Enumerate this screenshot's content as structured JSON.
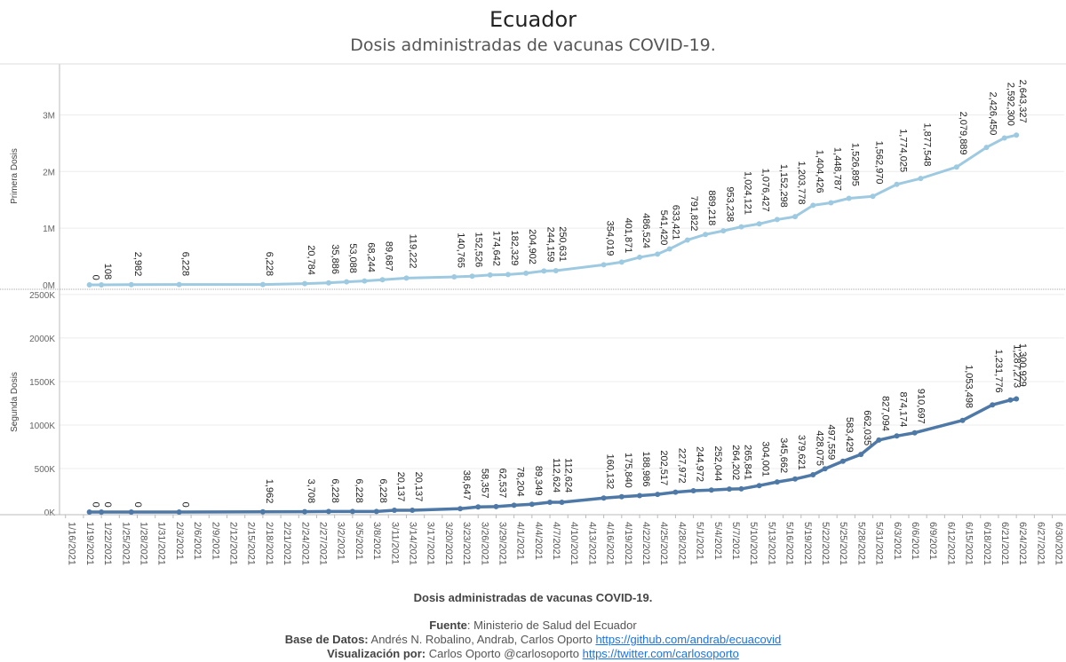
{
  "header": {
    "title": "Ecuador",
    "subtitle": "Dosis administradas de vacunas COVID-19."
  },
  "chart_data": {
    "type": "line",
    "colors": {
      "primera": "#9ecae1",
      "segunda": "#4e79a7"
    },
    "x": [
      "1/19/2021",
      "1/21/2021",
      "1/26/2021",
      "2/4/2021",
      "2/18/2021",
      "2/25/2021",
      "3/1/2021",
      "3/4/2021",
      "3/8/2021",
      "3/11/2021",
      "3/13/2021",
      "3/21/2021",
      "3/24/2021",
      "3/27/2021",
      "3/30/2021",
      "4/2/2021",
      "4/5/2021",
      "4/7/2021",
      "4/15/2021",
      "4/18/2021",
      "4/20/2021",
      "4/22/2021",
      "4/24/2021",
      "4/26/2021",
      "4/29/2021",
      "5/2/2021",
      "5/5/2021",
      "5/7/2021",
      "5/10/2021",
      "5/13/2021",
      "5/16/2021",
      "5/18/2021",
      "5/20/2021",
      "5/22/2021",
      "5/25/2021",
      "5/27/2021",
      "5/31/2021",
      "6/3/2021",
      "6/6/2021",
      "6/13/2021",
      "6/16/2021",
      "6/20/2021",
      "6/22/2021",
      "6/24/2021",
      "6/25/2021"
    ],
    "series": [
      {
        "key": "primera",
        "values": [
          0,
          108,
          2982,
          6228,
          6228,
          20784,
          35886,
          53088,
          68244,
          89687,
          119222,
          140765,
          152526,
          174642,
          182329,
          204902,
          244159,
          250631,
          354019,
          401871,
          486524,
          541420,
          633421,
          791822,
          889218,
          953238,
          1024121,
          1076427,
          1152298,
          1203778,
          1404426,
          1448787,
          1526895,
          1562970,
          1774025,
          1877548,
          2079889,
          2426450,
          2592300,
          2643327
        ],
        "x": [
          "1/20/2021",
          "1/22/2021",
          "1/27/2021",
          "2/4/2021",
          "2/18/2021",
          "2/25/2021",
          "3/1/2021",
          "3/4/2021",
          "3/7/2021",
          "3/10/2021",
          "3/14/2021",
          "3/22/2021",
          "3/25/2021",
          "3/28/2021",
          "3/31/2021",
          "4/3/2021",
          "4/6/2021",
          "4/8/2021",
          "4/16/2021",
          "4/19/2021",
          "4/22/2021",
          "4/25/2021",
          "4/27/2021",
          "4/30/2021",
          "5/3/2021",
          "5/6/2021",
          "5/9/2021",
          "5/12/2021",
          "5/15/2021",
          "5/18/2021",
          "5/21/2021",
          "5/24/2021",
          "5/27/2021",
          "5/31/2021",
          "6/4/2021",
          "6/8/2021",
          "6/14/2021",
          "6/19/2021",
          "6/22/2021",
          "6/24/2021"
        ],
        "labels": [
          "0",
          "108",
          "2,982",
          "6,228",
          "6,228",
          "20,784",
          "35,886",
          "53,088",
          "68,244",
          "89,687",
          "119,222",
          "140,765",
          "152,526",
          "174,642",
          "182,329",
          "204,902",
          "244,159",
          "250,631",
          "354,019",
          "401,871",
          "486,524",
          "541,420",
          "633,421",
          "791,822",
          "889,218",
          "953,238",
          "1,024,121",
          "1,076,427",
          "1,152,298",
          "1,203,778",
          "1,404,426",
          "1,448,787",
          "1,526,895",
          "1,562,970",
          "1,774,025",
          "1,877,548",
          "2,079,889",
          "2,426,450",
          "2,592,300",
          "2,643,327"
        ]
      },
      {
        "key": "segunda",
        "values": [
          0,
          0,
          0,
          0,
          1962,
          3708,
          6228,
          6228,
          6228,
          20137,
          20137,
          38647,
          58357,
          62537,
          78204,
          89349,
          112624,
          112624,
          160132,
          175840,
          188986,
          202517,
          227972,
          244972,
          252044,
          264202,
          265841,
          304001,
          345662,
          379621,
          428075,
          497559,
          583429,
          662035,
          827094,
          874174,
          910697,
          1053498,
          1231776,
          1287273,
          1300929
        ],
        "x": [
          "1/20/2021",
          "1/22/2021",
          "1/27/2021",
          "2/4/2021",
          "2/18/2021",
          "2/25/2021",
          "3/1/2021",
          "3/5/2021",
          "3/9/2021",
          "3/12/2021",
          "3/15/2021",
          "3/23/2021",
          "3/26/2021",
          "3/29/2021",
          "4/1/2021",
          "4/4/2021",
          "4/7/2021",
          "4/9/2021",
          "4/16/2021",
          "4/19/2021",
          "4/22/2021",
          "4/25/2021",
          "4/28/2021",
          "5/1/2021",
          "5/4/2021",
          "5/7/2021",
          "5/9/2021",
          "5/12/2021",
          "5/15/2021",
          "5/18/2021",
          "5/21/2021",
          "5/23/2021",
          "5/26/2021",
          "5/29/2021",
          "6/1/2021",
          "6/4/2021",
          "6/7/2021",
          "6/15/2021",
          "6/20/2021",
          "6/23/2021",
          "6/24/2021"
        ],
        "labels": [
          "0",
          "0",
          "0",
          "0",
          "1,962",
          "3,708",
          "6,228",
          "6,228",
          "6,228",
          "20,137",
          "20,137",
          "38,647",
          "58,357",
          "62,537",
          "78,204",
          "89,349",
          "112,624",
          "112,624",
          "160,132",
          "175,840",
          "188,986",
          "202,517",
          "227,972",
          "244,972",
          "252,044",
          "264,202",
          "265,841",
          "304,001",
          "345,662",
          "379,621",
          "428,075",
          "497,559",
          "583,429",
          "662,035",
          "827,094",
          "874,174",
          "910,697",
          "1,053,498",
          "1,231,776",
          "1,287,273",
          "1,300,929"
        ]
      }
    ],
    "panels": [
      {
        "key": "primera",
        "ylabel": "Primera Dosis",
        "ylim": [
          0,
          3900000
        ],
        "yticks": [
          0,
          1000000,
          2000000,
          3000000
        ],
        "yticklabels": [
          "0M",
          "1M",
          "2M",
          "3M"
        ]
      },
      {
        "key": "segunda",
        "ylabel": "Segunda Dosis",
        "ylim": [
          0,
          2550000
        ],
        "yticks": [
          0,
          500000,
          1000000,
          1500000,
          2000000,
          2500000
        ],
        "yticklabels": [
          "0K",
          "500K",
          "1000K",
          "1500K",
          "2000K",
          "2500K"
        ]
      }
    ],
    "xlim": [
      "1/15/2021",
      "7/2/2021"
    ],
    "xticks": [
      "1/16/2021",
      "1/19/2021",
      "1/22/2021",
      "1/25/2021",
      "1/28/2021",
      "1/31/2021",
      "2/3/2021",
      "2/6/2021",
      "2/9/2021",
      "2/12/2021",
      "2/15/2021",
      "2/18/2021",
      "2/21/2021",
      "2/24/2021",
      "2/27/2021",
      "3/2/2021",
      "3/5/2021",
      "3/8/2021",
      "3/11/2021",
      "3/14/2021",
      "3/17/2021",
      "3/20/2021",
      "3/23/2021",
      "3/26/2021",
      "3/29/2021",
      "4/1/2021",
      "4/4/2021",
      "4/7/2021",
      "4/10/2021",
      "4/13/2021",
      "4/16/2021",
      "4/19/2021",
      "4/22/2021",
      "4/25/2021",
      "4/28/2021",
      "5/1/2021",
      "5/4/2021",
      "5/7/2021",
      "5/10/2021",
      "5/13/2021",
      "5/16/2021",
      "5/19/2021",
      "5/22/2021",
      "5/25/2021",
      "5/28/2021",
      "5/31/2021",
      "6/3/2021",
      "6/6/2021",
      "6/9/2021",
      "6/12/2021",
      "6/15/2021",
      "6/18/2021",
      "6/21/2021",
      "6/24/2021",
      "6/27/2021",
      "6/30/2021"
    ],
    "grid": true
  },
  "footer": {
    "caption": "Dosis administradas de vacunas COVID-19.",
    "fuente_label": "Fuente",
    "fuente_text": ": Ministerio de Salud del Ecuador",
    "base_label": "Base de Datos:",
    "base_text": " Andrés N. Robalino, Andrab, Carlos Oporto ",
    "base_link": "https://github.com/andrab/ecuacovid",
    "visual_label": "Visualización por:",
    "visual_text": " Carlos Oporto @carlosoporto ",
    "visual_link": "https://twitter.com/carlosoporto"
  }
}
